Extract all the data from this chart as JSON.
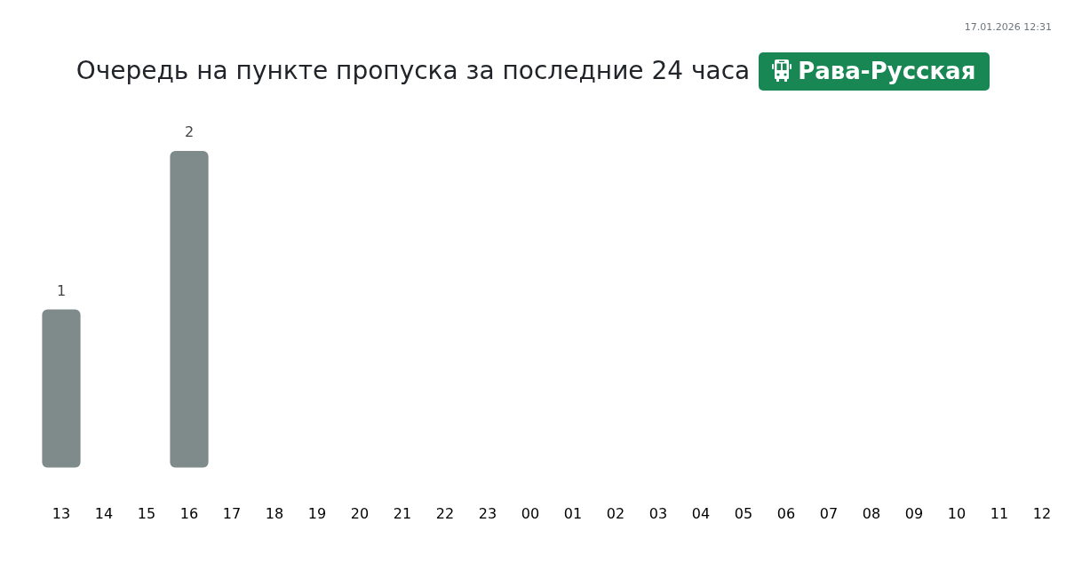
{
  "chart_data": {
    "type": "bar",
    "title": "Очередь на пункте пропуска за последние 24 часа",
    "subtitle": "Рава-Русская",
    "categories": [
      "13",
      "14",
      "15",
      "16",
      "17",
      "18",
      "19",
      "20",
      "21",
      "22",
      "23",
      "00",
      "01",
      "02",
      "03",
      "04",
      "05",
      "06",
      "07",
      "08",
      "09",
      "10",
      "11",
      "12"
    ],
    "values": [
      1,
      0,
      0,
      2,
      0,
      0,
      0,
      0,
      0,
      0,
      0,
      0,
      0,
      0,
      0,
      0,
      0,
      0,
      0,
      0,
      0,
      0,
      0,
      0
    ],
    "value_labels": [
      "1",
      null,
      null,
      "2",
      null,
      null,
      null,
      null,
      null,
      null,
      null,
      null,
      null,
      null,
      null,
      null,
      null,
      null,
      null,
      null,
      null,
      null,
      null,
      null
    ],
    "color": "#7f8b8a",
    "annotations": [
      "17.01.2026 12:31"
    ]
  }
}
